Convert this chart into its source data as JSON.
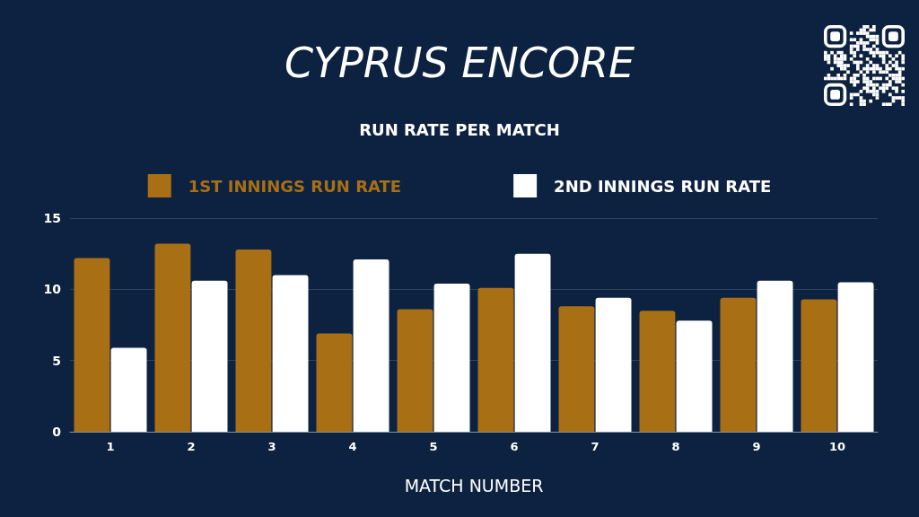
{
  "chart_data": {
    "type": "bar",
    "title": "CYPRUS ENCORE",
    "subtitle": "RUN RATE PER MATCH",
    "xlabel": "MATCH NUMBER",
    "categories": [
      "1",
      "2",
      "3",
      "4",
      "5",
      "6",
      "7",
      "8",
      "9",
      "10"
    ],
    "series": [
      {
        "name": "1ST INNINGS RUN RATE",
        "color": "#a86f14",
        "values": [
          12.2,
          13.2,
          12.8,
          6.9,
          8.6,
          10.1,
          8.8,
          8.5,
          9.4,
          9.3
        ]
      },
      {
        "name": "2ND INNINGS RUN RATE",
        "color": "#ffffff",
        "values": [
          5.9,
          10.6,
          11.0,
          12.1,
          10.4,
          12.5,
          9.4,
          7.8,
          10.6,
          10.5
        ]
      }
    ],
    "ylim": [
      0,
      15
    ],
    "yticks": [
      0,
      5,
      10,
      15
    ],
    "grid": "y",
    "legend": "top"
  }
}
